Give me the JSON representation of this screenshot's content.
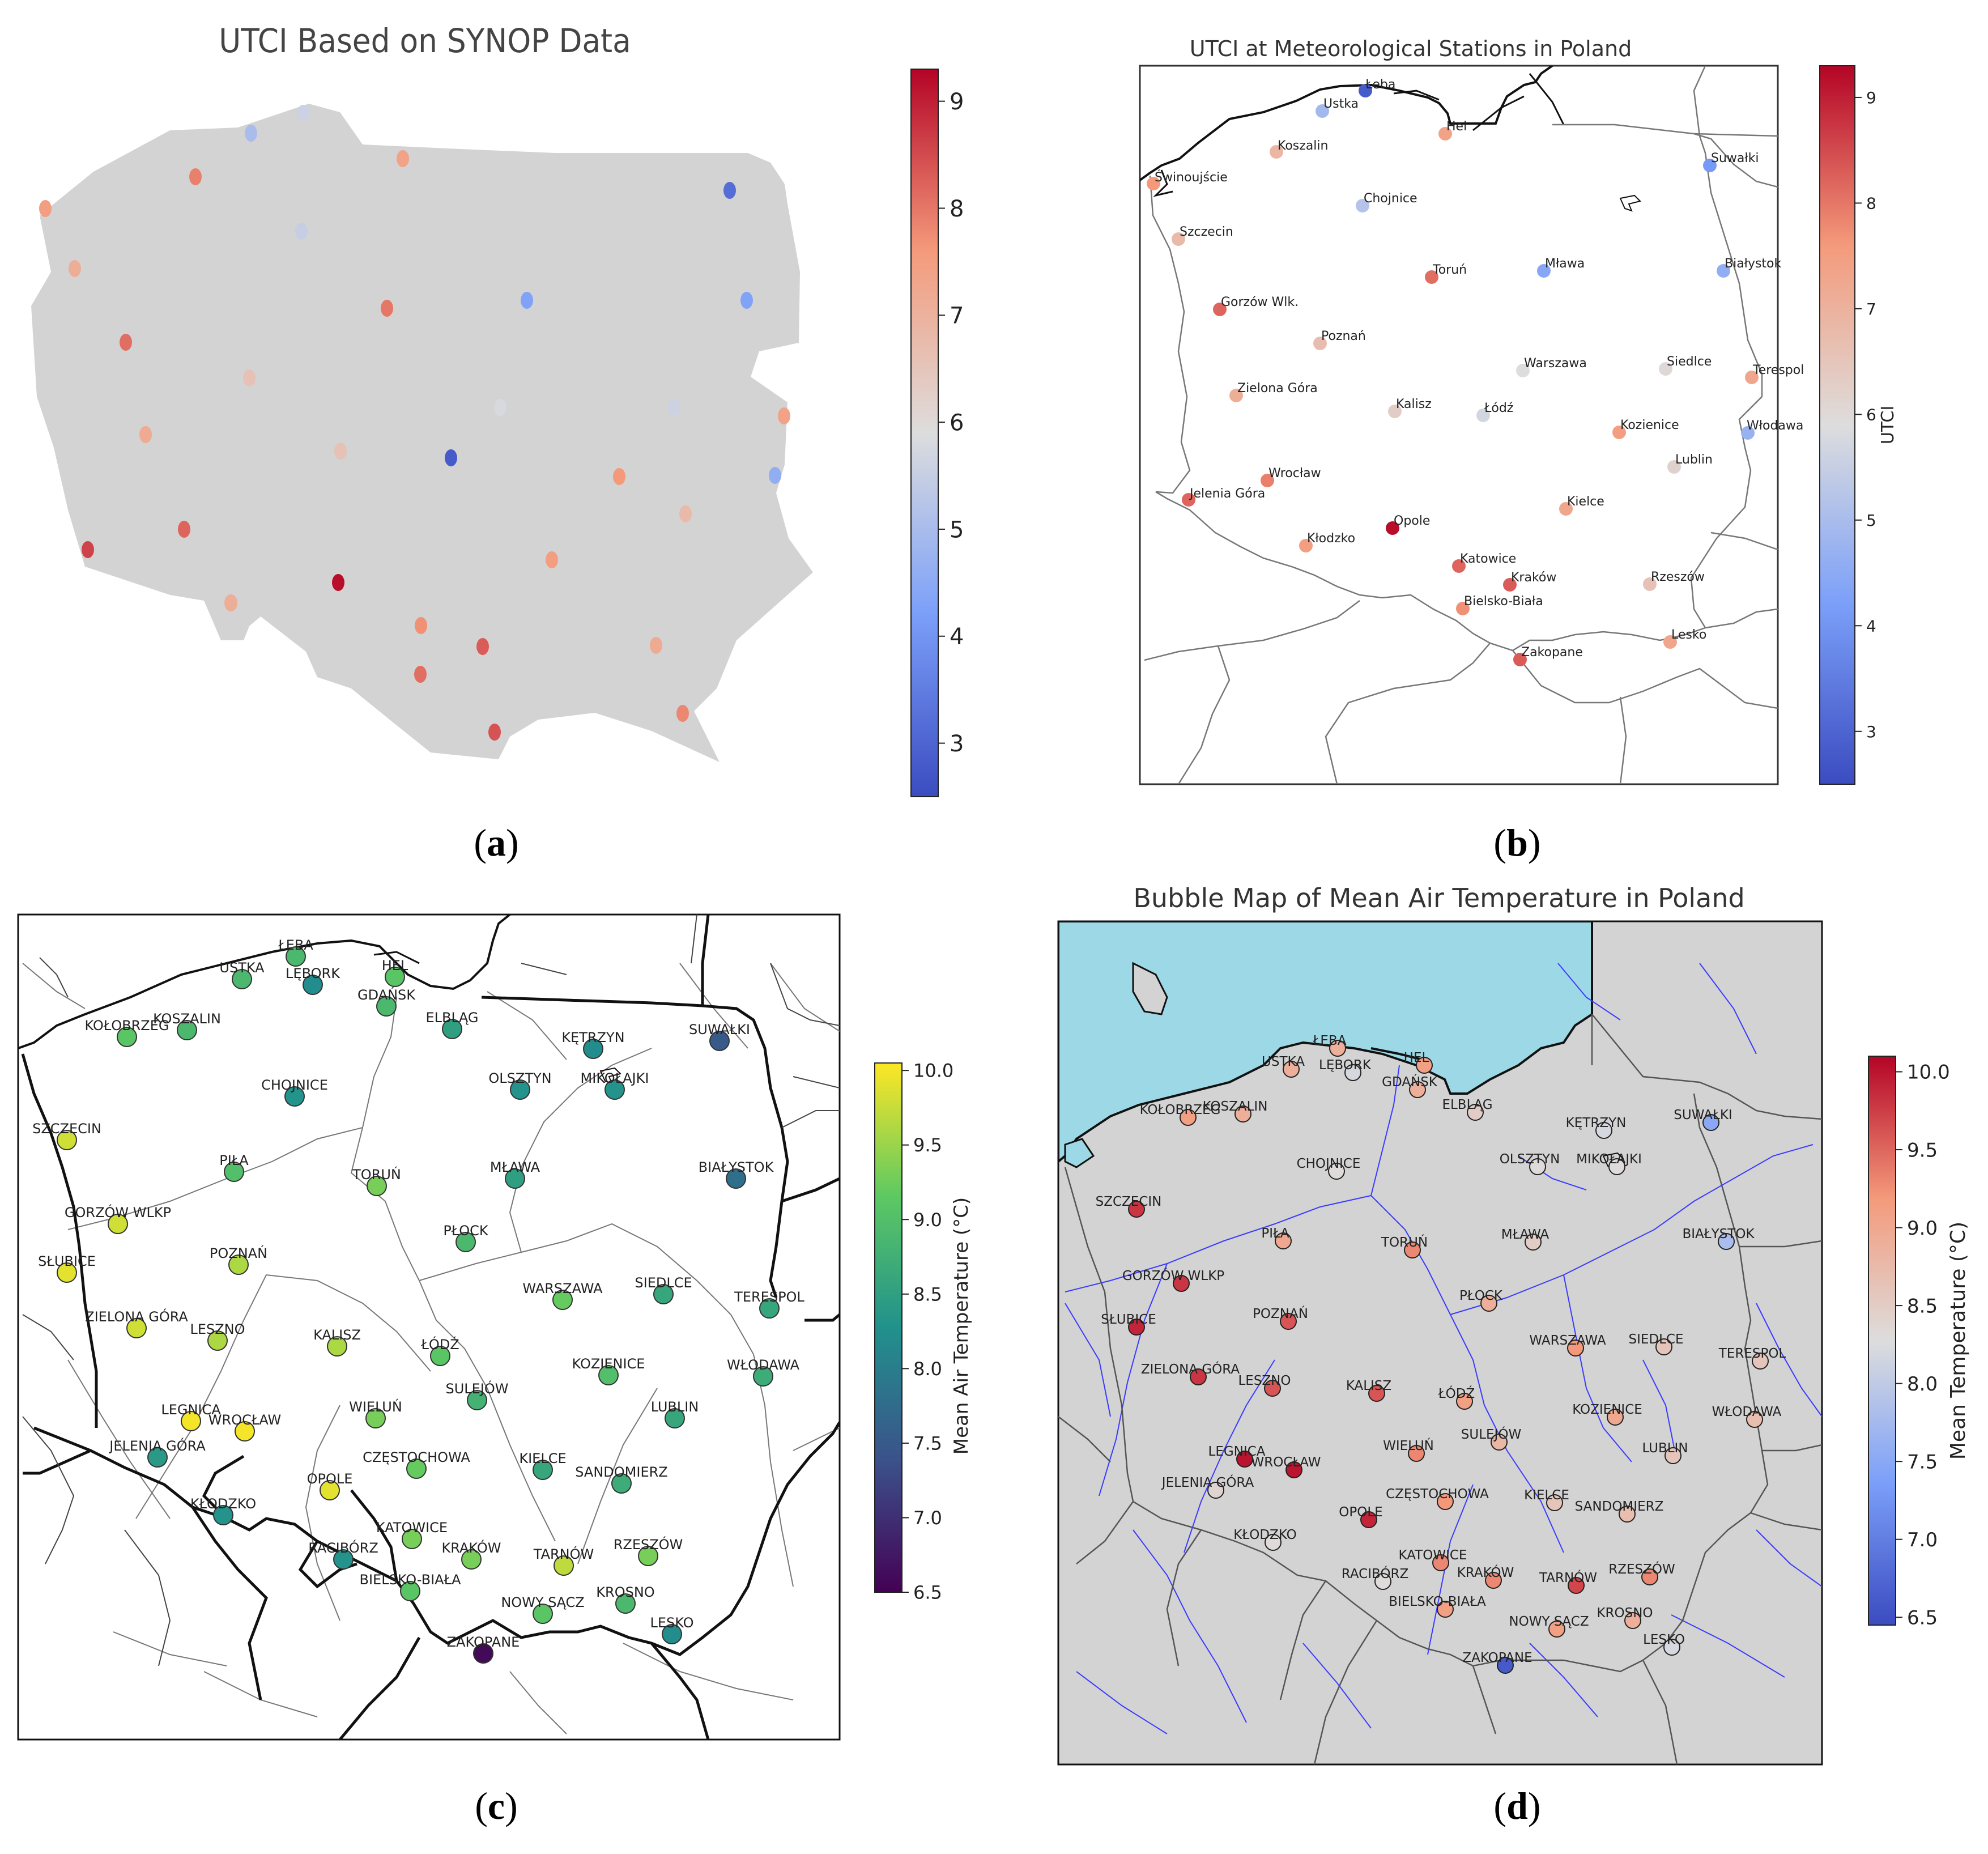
{
  "panels": {
    "a": {
      "title": "UTCI Based on SYNOP Data",
      "caption": "a",
      "colorbar": {
        "colormap": "coolwarm",
        "min": 2.5,
        "max": 9.3,
        "ticks": [
          "3",
          "4",
          "5",
          "6",
          "7",
          "8",
          "9"
        ]
      },
      "points": [
        {
          "v": 5.0
        },
        {
          "v": 5.6
        },
        {
          "v": 7.4
        },
        {
          "v": 7.9
        },
        {
          "v": 7.5
        },
        {
          "v": 3.2
        },
        {
          "v": 7.1
        },
        {
          "v": 5.5
        },
        {
          "v": 8.0
        },
        {
          "v": 4.3
        },
        {
          "v": 4.3
        },
        {
          "v": 8.1
        },
        {
          "v": 6.6
        },
        {
          "v": 7.2
        },
        {
          "v": 7.4
        },
        {
          "v": 5.8
        },
        {
          "v": 6.6
        },
        {
          "v": 5.6
        },
        {
          "v": 2.8
        },
        {
          "v": 7.6
        },
        {
          "v": 4.6
        },
        {
          "v": 8.2
        },
        {
          "v": 6.8
        },
        {
          "v": 8.6
        },
        {
          "v": 7.5
        },
        {
          "v": 7.2
        },
        {
          "v": 9.2
        },
        {
          "v": 7.7
        },
        {
          "v": 8.3
        },
        {
          "v": 8.1
        },
        {
          "v": 7.2
        },
        {
          "v": 7.8
        },
        {
          "v": 8.4
        },
        {
          "v": 7.1
        }
      ]
    },
    "b": {
      "title": "UTCI at Meteorological Stations in Poland",
      "caption": "b",
      "colorbar": {
        "label": "UTCI",
        "colormap": "coolwarm",
        "min": 2.5,
        "max": 9.3,
        "ticks": [
          "3",
          "4",
          "5",
          "6",
          "7",
          "8",
          "9"
        ]
      },
      "stations": [
        {
          "name": "Łeba",
          "v": 2.8
        },
        {
          "name": "Ustka",
          "v": 4.9
        },
        {
          "name": "Hel",
          "v": 7.4
        },
        {
          "name": "Koszalin",
          "v": 6.9
        },
        {
          "name": "Świnoujście",
          "v": 7.6
        },
        {
          "name": "Suwałki",
          "v": 4.1
        },
        {
          "name": "Chojnice",
          "v": 5.2
        },
        {
          "name": "Szczecin",
          "v": 6.8
        },
        {
          "name": "Toruń",
          "v": 8.1
        },
        {
          "name": "Mława",
          "v": 4.4
        },
        {
          "name": "Białystok",
          "v": 4.6
        },
        {
          "name": "Gorzów Wlk.",
          "v": 8.2
        },
        {
          "name": "Poznań",
          "v": 6.7
        },
        {
          "name": "Warszawa",
          "v": 5.9
        },
        {
          "name": "Siedlce",
          "v": 6.0
        },
        {
          "name": "Terespol",
          "v": 7.3
        },
        {
          "name": "Zielona Góra",
          "v": 7.1
        },
        {
          "name": "Kalisz",
          "v": 6.3
        },
        {
          "name": "Łódź",
          "v": 5.7
        },
        {
          "name": "Kozienice",
          "v": 7.5
        },
        {
          "name": "Włodawa",
          "v": 4.7
        },
        {
          "name": "Lublin",
          "v": 6.2
        },
        {
          "name": "Wrocław",
          "v": 7.9
        },
        {
          "name": "Jelenia Góra",
          "v": 8.2
        },
        {
          "name": "Kielce",
          "v": 7.3
        },
        {
          "name": "Opole",
          "v": 9.2
        },
        {
          "name": "Kłodzko",
          "v": 7.5
        },
        {
          "name": "Katowice",
          "v": 8.2
        },
        {
          "name": "Kraków",
          "v": 8.3
        },
        {
          "name": "Rzeszów",
          "v": 6.6
        },
        {
          "name": "Bielsko-Biała",
          "v": 7.7
        },
        {
          "name": "Lesko",
          "v": 7.3
        },
        {
          "name": "Zakopane",
          "v": 8.3
        }
      ]
    },
    "c": {
      "caption": "c",
      "colorbar": {
        "label": "Mean Air Temperature (°C)",
        "colormap": "viridis",
        "min": 6.5,
        "max": 10.05,
        "ticks": [
          "6.5",
          "7.0",
          "7.5",
          "8.0",
          "8.5",
          "9.0",
          "9.5",
          "10.0"
        ]
      },
      "stations": [
        {
          "name": "ŁEBA",
          "v": 8.9
        },
        {
          "name": "USTKA",
          "v": 8.9
        },
        {
          "name": "LĘBORK",
          "v": 8.2
        },
        {
          "name": "HEL",
          "v": 9.1
        },
        {
          "name": "GDAŃSK",
          "v": 8.9
        },
        {
          "name": "KOŁOBRZEG",
          "v": 9.1
        },
        {
          "name": "KOSZALIN",
          "v": 8.9
        },
        {
          "name": "ELBLĄG",
          "v": 8.5
        },
        {
          "name": "KĘTRZYN",
          "v": 8.2
        },
        {
          "name": "SUWAŁKI",
          "v": 7.5
        },
        {
          "name": "CHOJNICE",
          "v": 8.3
        },
        {
          "name": "OLSZTYN",
          "v": 8.3
        },
        {
          "name": "MIKOŁAJKI",
          "v": 8.3
        },
        {
          "name": "SZCZECIN",
          "v": 9.8
        },
        {
          "name": "PIŁA",
          "v": 9.0
        },
        {
          "name": "TORUŃ",
          "v": 9.3
        },
        {
          "name": "MŁAWA",
          "v": 8.5
        },
        {
          "name": "BIAŁYSTOK",
          "v": 7.8
        },
        {
          "name": "GORZÓW WLKP",
          "v": 9.8
        },
        {
          "name": "PŁOCK",
          "v": 8.9
        },
        {
          "name": "SŁUBICE",
          "v": 9.9
        },
        {
          "name": "POZNAŃ",
          "v": 9.6
        },
        {
          "name": "WARSZAWA",
          "v": 9.2
        },
        {
          "name": "SIEDLCE",
          "v": 8.6
        },
        {
          "name": "TERESPOL",
          "v": 8.6
        },
        {
          "name": "ZIELONA GÓRA",
          "v": 9.8
        },
        {
          "name": "LESZNO",
          "v": 9.6
        },
        {
          "name": "KALISZ",
          "v": 9.6
        },
        {
          "name": "ŁÓDŹ",
          "v": 9.1
        },
        {
          "name": "KOZIENICE",
          "v": 9.0
        },
        {
          "name": "WŁODAWA",
          "v": 8.7
        },
        {
          "name": "SULEJÓW",
          "v": 8.8
        },
        {
          "name": "LUBLIN",
          "v": 8.6
        },
        {
          "name": "LEGNICA",
          "v": 10.0
        },
        {
          "name": "WROCŁAW",
          "v": 10.0
        },
        {
          "name": "WIELUŃ",
          "v": 9.3
        },
        {
          "name": "JELENIA GÓRA",
          "v": 8.4
        },
        {
          "name": "CZĘSTOCHOWA",
          "v": 9.2
        },
        {
          "name": "KIELCE",
          "v": 8.6
        },
        {
          "name": "OPOLE",
          "v": 9.9
        },
        {
          "name": "SANDOMIERZ",
          "v": 8.7
        },
        {
          "name": "KŁODZKO",
          "v": 8.3
        },
        {
          "name": "KATOWICE",
          "v": 9.3
        },
        {
          "name": "KRAKÓW",
          "v": 9.3
        },
        {
          "name": "TARNÓW",
          "v": 9.7
        },
        {
          "name": "RZESZÓW",
          "v": 9.3
        },
        {
          "name": "RACIBÓRZ",
          "v": 8.3
        },
        {
          "name": "BIELSKO-BIAŁA",
          "v": 9.1
        },
        {
          "name": "NOWY SĄCZ",
          "v": 9.1
        },
        {
          "name": "KROSNO",
          "v": 8.9
        },
        {
          "name": "LESKO",
          "v": 8.2
        },
        {
          "name": "ZAKOPANE",
          "v": 6.6
        }
      ]
    },
    "d": {
      "title": "Bubble Map of Mean Air Temperature in Poland",
      "caption": "d",
      "colorbar": {
        "label": "Mean Temperature (°C)",
        "colormap": "coolwarm",
        "min": 6.45,
        "max": 10.1,
        "ticks": [
          "6.5",
          "7.0",
          "7.5",
          "8.0",
          "8.5",
          "9.0",
          "9.5",
          "10.0"
        ]
      },
      "stations": [
        {
          "name": "ŁEBA",
          "v": 8.9
        },
        {
          "name": "USTKA",
          "v": 8.9
        },
        {
          "name": "LĘBORK",
          "v": 8.2
        },
        {
          "name": "HEL",
          "v": 9.1
        },
        {
          "name": "GDAŃSK",
          "v": 8.9
        },
        {
          "name": "KOŁOBRZEG",
          "v": 9.1
        },
        {
          "name": "KOSZALIN",
          "v": 8.9
        },
        {
          "name": "ELBLĄG",
          "v": 8.5
        },
        {
          "name": "KĘTRZYN",
          "v": 8.2
        },
        {
          "name": "SUWAŁKI",
          "v": 7.5
        },
        {
          "name": "CHOJNICE",
          "v": 8.3
        },
        {
          "name": "OLSZTYN",
          "v": 8.3
        },
        {
          "name": "MIKOŁAJKI",
          "v": 8.3
        },
        {
          "name": "SZCZECIN",
          "v": 9.8
        },
        {
          "name": "PIŁA",
          "v": 9.0
        },
        {
          "name": "TORUŃ",
          "v": 9.3
        },
        {
          "name": "MŁAWA",
          "v": 8.5
        },
        {
          "name": "BIAŁYSTOK",
          "v": 7.8
        },
        {
          "name": "GORZÓW WLKP",
          "v": 9.8
        },
        {
          "name": "PŁOCK",
          "v": 8.9
        },
        {
          "name": "SŁUBICE",
          "v": 9.9
        },
        {
          "name": "POZNAŃ",
          "v": 9.6
        },
        {
          "name": "WARSZAWA",
          "v": 9.2
        },
        {
          "name": "SIEDLCE",
          "v": 8.6
        },
        {
          "name": "TERESPOL",
          "v": 8.6
        },
        {
          "name": "ZIELONA GÓRA",
          "v": 9.8
        },
        {
          "name": "LESZNO",
          "v": 9.6
        },
        {
          "name": "KALISZ",
          "v": 9.6
        },
        {
          "name": "ŁÓDŹ",
          "v": 9.1
        },
        {
          "name": "KOZIENICE",
          "v": 9.0
        },
        {
          "name": "WŁODAWA",
          "v": 8.7
        },
        {
          "name": "SULEJÓW",
          "v": 8.8
        },
        {
          "name": "LUBLIN",
          "v": 8.6
        },
        {
          "name": "LEGNICA",
          "v": 10.0
        },
        {
          "name": "WROCŁAW",
          "v": 10.0
        },
        {
          "name": "WIELUŃ",
          "v": 9.3
        },
        {
          "name": "JELENIA GÓRA",
          "v": 8.4
        },
        {
          "name": "CZĘSTOCHOWA",
          "v": 9.2
        },
        {
          "name": "KIELCE",
          "v": 8.6
        },
        {
          "name": "OPOLE",
          "v": 9.9
        },
        {
          "name": "SANDOMIERZ",
          "v": 8.7
        },
        {
          "name": "KŁODZKO",
          "v": 8.3
        },
        {
          "name": "KATOWICE",
          "v": 9.3
        },
        {
          "name": "KRAKÓW",
          "v": 9.3
        },
        {
          "name": "TARNÓW",
          "v": 9.7
        },
        {
          "name": "RZESZÓW",
          "v": 9.3
        },
        {
          "name": "RACIBÓRZ",
          "v": 8.3
        },
        {
          "name": "BIELSKO-BIAŁA",
          "v": 9.1
        },
        {
          "name": "NOWY SĄCZ",
          "v": 9.1
        },
        {
          "name": "KROSNO",
          "v": 8.9
        },
        {
          "name": "LESKO",
          "v": 8.2
        },
        {
          "name": "ZAKOPANE",
          "v": 6.6
        }
      ]
    }
  }
}
